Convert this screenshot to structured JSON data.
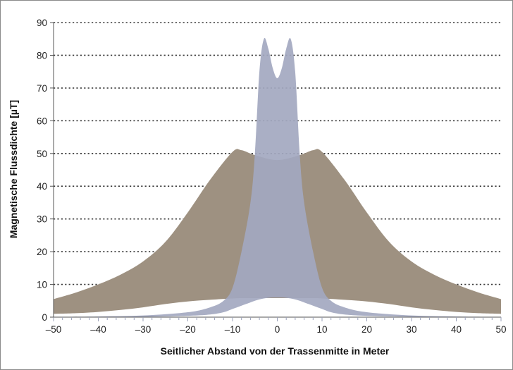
{
  "chart_data": {
    "type": "area",
    "title": "",
    "xlabel": "Seitlicher Abstand von der Trassenmitte in Meter",
    "ylabel": "Magnetische Flussdichte [µT]",
    "xlim": [
      -50,
      50
    ],
    "ylim": [
      0,
      90
    ],
    "x_ticks": [
      -50,
      -40,
      -30,
      -20,
      -10,
      0,
      10,
      20,
      30,
      40,
      50
    ],
    "x_tick_labels": [
      "–50",
      "–40",
      "–30",
      "–20",
      "–10",
      "0",
      "10",
      "20",
      "30",
      "40",
      "50"
    ],
    "y_ticks": [
      0,
      10,
      20,
      30,
      40,
      50,
      60,
      70,
      80,
      90
    ],
    "grid": "horizontal dotted",
    "legend": "none",
    "series": [
      {
        "color": "#9e9181",
        "x": [
          -50,
          -45,
          -40,
          -35,
          -30,
          -25,
          -20,
          -15,
          -10,
          -8,
          -5,
          0,
          5,
          8,
          10,
          15,
          20,
          25,
          30,
          35,
          40,
          45,
          50
        ],
        "upper": [
          5.5,
          7.5,
          10,
          13,
          17,
          23,
          32,
          42,
          50.5,
          51,
          49.5,
          48,
          49.5,
          51,
          50.5,
          42,
          32,
          23,
          17,
          13,
          10,
          7.5,
          5.5
        ],
        "lower": [
          1,
          1.2,
          1.6,
          2.2,
          3,
          4,
          4.8,
          5.3,
          5.7,
          5.8,
          5.8,
          5.8,
          5.8,
          5.8,
          5.7,
          5.3,
          4.8,
          4,
          3,
          2.2,
          1.6,
          1.2,
          1
        ]
      },
      {
        "color": "#a3a8c0",
        "x": [
          -50,
          -40,
          -30,
          -20,
          -15,
          -12,
          -10,
          -8,
          -6,
          -5,
          -4,
          -3,
          -2,
          -1,
          0,
          1,
          2,
          3,
          4,
          5,
          6,
          8,
          10,
          12,
          15,
          20,
          30,
          40,
          50
        ],
        "upper": [
          0.1,
          0.2,
          0.5,
          1.5,
          3,
          5,
          9,
          20,
          35,
          50,
          75,
          85,
          82,
          76,
          73,
          76,
          82,
          85,
          75,
          50,
          35,
          20,
          9,
          5,
          3,
          1.5,
          0.5,
          0.2,
          0.1
        ],
        "lower": [
          0,
          0.05,
          0.1,
          0.4,
          0.8,
          1.5,
          2.5,
          3.5,
          4.5,
          5,
          5.4,
          5.7,
          5.9,
          6,
          6,
          6,
          5.9,
          5.7,
          5.4,
          5,
          4.5,
          3.5,
          2.5,
          1.5,
          0.8,
          0.4,
          0.1,
          0.05,
          0
        ]
      }
    ]
  }
}
